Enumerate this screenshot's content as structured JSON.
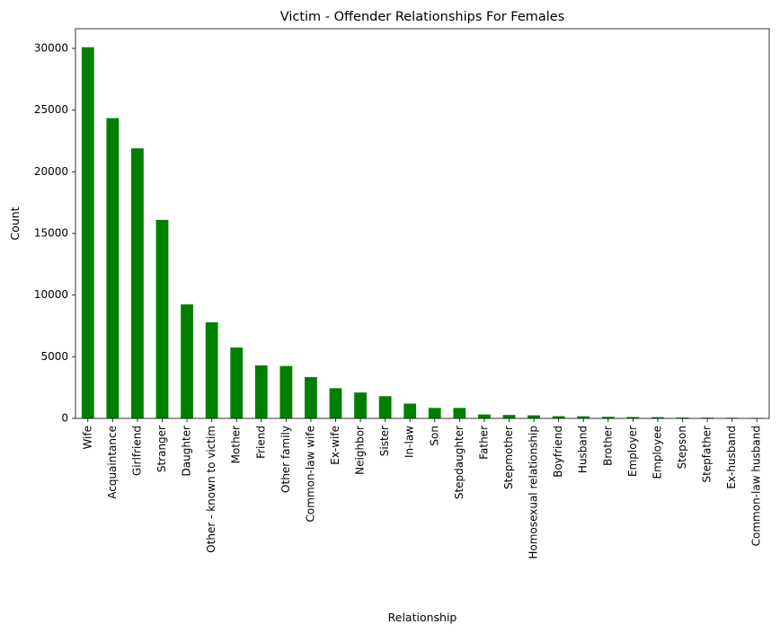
{
  "chart_data": {
    "type": "bar",
    "title": "Victim - Offender Relationships For Females",
    "xlabel": "Relationship",
    "ylabel": "Count",
    "ylim": [
      0,
      31600
    ],
    "yticks": [
      0,
      5000,
      10000,
      15000,
      20000,
      25000,
      30000
    ],
    "bar_color": "#008000",
    "grid": false,
    "categories": [
      "Wife",
      "Acquaintance",
      "Girlfriend",
      "Stranger",
      "Daughter",
      "Other - known to victim",
      "Mother",
      "Friend",
      "Other family",
      "Common-law wife",
      "Ex-wife",
      "Neighbor",
      "Sister",
      "In-law",
      "Son",
      "Stepdaughter",
      "Father",
      "Stepmother",
      "Homosexual relationship",
      "Boyfriend",
      "Husband",
      "Brother",
      "Employer",
      "Employee",
      "Stepson",
      "Stepfather",
      "Ex-husband",
      "Common-law husband"
    ],
    "values": [
      30100,
      24350,
      21900,
      16100,
      9250,
      7800,
      5750,
      4300,
      4250,
      3350,
      2450,
      2100,
      1800,
      1200,
      850,
      850,
      320,
      280,
      250,
      180,
      170,
      130,
      110,
      100,
      70,
      60,
      50,
      40
    ]
  }
}
